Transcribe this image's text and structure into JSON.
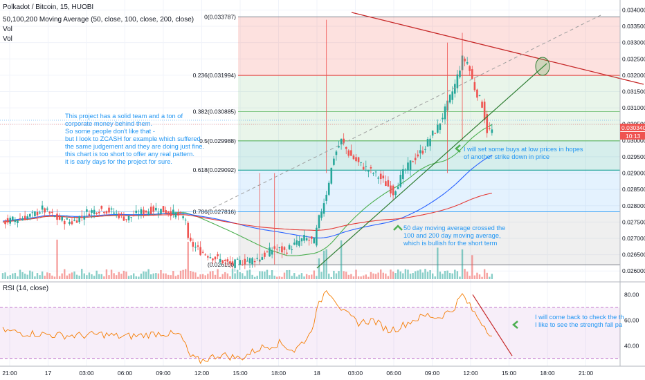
{
  "header": {
    "symbol": "Polkadot / Bitcoin, 15, HUOBI",
    "indicator": "50,100,200 Moving Average (50, close, 100, close, 200, close)",
    "vol1": "Vol",
    "vol2": "Vol"
  },
  "rsi_header": "RSI (14, close)",
  "price_tag": {
    "value": "0.030340",
    "time": "10:13"
  },
  "annotations": {
    "left_note": [
      "This project has a solid team and a ton of",
      "corporate money behind them.",
      "So some people don't like that -",
      "but I look to ZCASH for example which suffered",
      "the same judgement  and they are doing just fine.",
      "this chart is too short to offer any real pattern.",
      "it is early days for the project for sure."
    ],
    "buy_note": [
      "I will set some buys at low prices in hopes",
      "of another strike down in price"
    ],
    "ma_note": [
      "50 day moving average crossed the",
      "100 and 200 day moving average,",
      "which is bullish for the short term"
    ],
    "rsi_note": [
      "I will come back to check the th",
      "I like to see the strength fall pa"
    ]
  },
  "colors": {
    "up": "#26a69a",
    "down": "#ef5350",
    "ma50": "#4caf50",
    "ma100": "#2962ff",
    "ma200": "#e53935",
    "rsi": "#f57c00",
    "note": "#2196f3"
  },
  "chart_data": {
    "type": "candlestick",
    "price_axis": {
      "range": [
        0.02575,
        0.0342
      ],
      "ticks": [
        "0.034000",
        "0.033500",
        "0.033000",
        "0.032500",
        "0.032000",
        "0.031500",
        "0.031000",
        "0.030500",
        "0.030000",
        "0.029500",
        "0.029000",
        "0.028500",
        "0.028000",
        "0.027500",
        "0.027000",
        "0.026500",
        "0.026000"
      ]
    },
    "time_axis": {
      "labels": [
        "21:00",
        "17",
        "03:00",
        "06:00",
        "09:00",
        "12:00",
        "15:00",
        "18:00",
        "18",
        "03:00",
        "06:00",
        "09:00",
        "12:00",
        "15:00",
        "18:00",
        "21:00"
      ]
    },
    "fib_levels": [
      {
        "ratio": "0",
        "value": 0.033787,
        "label": "0(0.033787)"
      },
      {
        "ratio": "0.236",
        "value": 0.031994,
        "label": "0.236(0.031994)"
      },
      {
        "ratio": "0.382",
        "value": 0.030885,
        "label": "0.382(0.030885)"
      },
      {
        "ratio": "0.5",
        "value": 0.029988,
        "label": "0.5(0.029988)"
      },
      {
        "ratio": "0.618",
        "value": 0.029092,
        "label": "0.618(0.029092)"
      },
      {
        "ratio": "0.786",
        "value": 0.027816,
        "label": "0.786(0.027816)"
      },
      {
        "ratio": "1",
        "value": 0.02619,
        "label": "(0.026190)"
      }
    ],
    "close_path": [
      [
        0,
        0.0275
      ],
      [
        6,
        0.0276
      ],
      [
        12,
        0.0277
      ],
      [
        16,
        0.0279
      ],
      [
        22,
        0.0276
      ],
      [
        28,
        0.0275
      ],
      [
        34,
        0.0278
      ],
      [
        40,
        0.0279
      ],
      [
        45,
        0.0278
      ],
      [
        50,
        0.0276
      ],
      [
        56,
        0.0278
      ],
      [
        62,
        0.0279
      ],
      [
        68,
        0.0278
      ],
      [
        74,
        0.0276
      ],
      [
        75,
        0.0269
      ],
      [
        80,
        0.0266
      ],
      [
        86,
        0.0264
      ],
      [
        92,
        0.0262
      ],
      [
        98,
        0.0263
      ],
      [
        104,
        0.0264
      ],
      [
        110,
        0.0267
      ],
      [
        114,
        0.0266
      ],
      [
        118,
        0.0268
      ],
      [
        122,
        0.027
      ],
      [
        126,
        0.0269
      ],
      [
        128,
        0.0276
      ],
      [
        131,
        0.0284
      ],
      [
        134,
        0.0295
      ],
      [
        137,
        0.03
      ],
      [
        140,
        0.0296
      ],
      [
        144,
        0.0293
      ],
      [
        148,
        0.0291
      ],
      [
        152,
        0.0289
      ],
      [
        156,
        0.0286
      ],
      [
        158,
        0.0284
      ],
      [
        162,
        0.029
      ],
      [
        166,
        0.0294
      ],
      [
        170,
        0.0297
      ],
      [
        174,
        0.0302
      ],
      [
        176,
        0.0304
      ],
      [
        180,
        0.0311
      ],
      [
        183,
        0.0317
      ],
      [
        186,
        0.0325
      ],
      [
        188,
        0.0324
      ],
      [
        191,
        0.0316
      ],
      [
        194,
        0.0311
      ],
      [
        196,
        0.0303
      ]
    ],
    "rsi": {
      "range": [
        25,
        90
      ],
      "levels": [
        70,
        30
      ],
      "ticks": [
        "80.00",
        "60.00",
        "40.00"
      ],
      "path": [
        [
          0,
          52
        ],
        [
          8,
          50
        ],
        [
          16,
          49
        ],
        [
          24,
          48
        ],
        [
          32,
          48
        ],
        [
          40,
          49
        ],
        [
          48,
          47
        ],
        [
          56,
          48
        ],
        [
          64,
          50
        ],
        [
          72,
          48
        ],
        [
          76,
          31
        ],
        [
          80,
          28
        ],
        [
          88,
          33
        ],
        [
          96,
          30
        ],
        [
          104,
          38
        ],
        [
          112,
          42
        ],
        [
          118,
          36
        ],
        [
          124,
          48
        ],
        [
          128,
          72
        ],
        [
          131,
          85
        ],
        [
          134,
          78
        ],
        [
          138,
          66
        ],
        [
          144,
          58
        ],
        [
          150,
          60
        ],
        [
          156,
          52
        ],
        [
          160,
          54
        ],
        [
          166,
          60
        ],
        [
          172,
          64
        ],
        [
          176,
          62
        ],
        [
          182,
          68
        ],
        [
          186,
          80
        ],
        [
          190,
          68
        ],
        [
          194,
          58
        ],
        [
          198,
          48
        ]
      ]
    }
  }
}
